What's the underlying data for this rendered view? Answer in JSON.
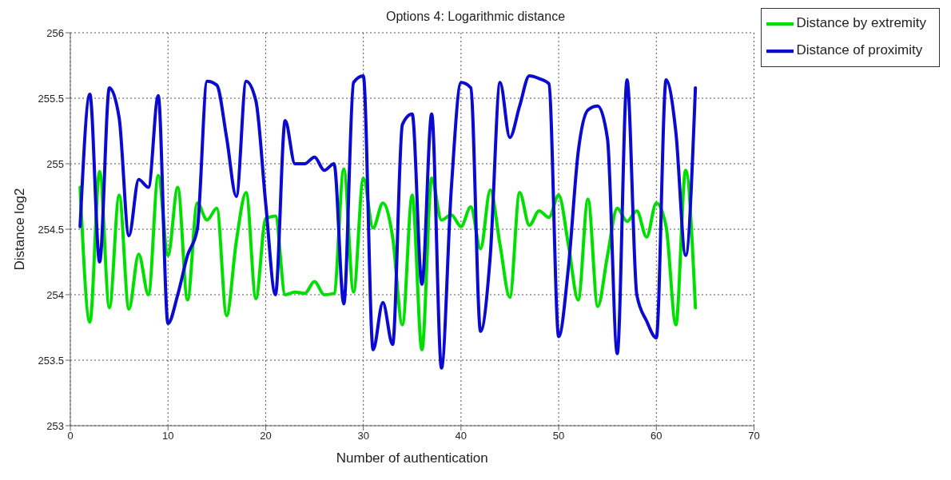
{
  "chart_data": {
    "type": "line",
    "title": "Options 4: Logarithmic distance",
    "xlabel": "Number of authentication",
    "ylabel": "Distance log2",
    "x": [
      1,
      2,
      3,
      4,
      5,
      6,
      7,
      8,
      9,
      10,
      11,
      12,
      13,
      14,
      15,
      16,
      17,
      18,
      19,
      20,
      21,
      22,
      23,
      24,
      25,
      26,
      27,
      28,
      29,
      30,
      31,
      32,
      33,
      34,
      35,
      36,
      37,
      38,
      39,
      40,
      41,
      42,
      43,
      44,
      45,
      46,
      47,
      48,
      49,
      50,
      51,
      52,
      53,
      54,
      55,
      56,
      57,
      58,
      59,
      60,
      61,
      62,
      63,
      64
    ],
    "series": [
      {
        "name": "Distance by extremity",
        "color": "#00e000",
        "values": [
          254.82,
          253.79,
          254.94,
          253.9,
          254.76,
          253.89,
          254.31,
          254.0,
          254.91,
          254.3,
          254.82,
          253.96,
          254.7,
          254.57,
          254.66,
          253.84,
          254.41,
          254.78,
          253.97,
          254.58,
          254.6,
          254.0,
          254.02,
          254.01,
          254.1,
          254.0,
          254.01,
          254.96,
          254.02,
          254.89,
          254.51,
          254.7,
          254.44,
          253.77,
          254.76,
          253.58,
          254.89,
          254.57,
          254.61,
          254.52,
          254.67,
          254.35,
          254.8,
          254.38,
          253.98,
          254.78,
          254.53,
          254.64,
          254.59,
          254.76,
          254.38,
          253.96,
          254.73,
          253.91,
          254.3,
          254.66,
          254.56,
          254.64,
          254.44,
          254.7,
          254.52,
          253.77,
          254.95,
          253.9
        ]
      },
      {
        "name": "Distance of proximity",
        "color": "#0a0ad0",
        "values": [
          254.52,
          255.53,
          254.25,
          255.58,
          255.35,
          254.45,
          254.88,
          254.82,
          255.52,
          253.78,
          254.0,
          254.3,
          254.5,
          255.63,
          255.6,
          255.2,
          254.75,
          255.63,
          255.48,
          254.7,
          254.0,
          255.33,
          255.0,
          255.0,
          255.05,
          254.95,
          255.0,
          253.93,
          255.62,
          255.67,
          253.58,
          253.94,
          253.62,
          255.3,
          255.38,
          254.08,
          255.38,
          253.44,
          254.8,
          255.62,
          255.58,
          253.72,
          254.3,
          255.62,
          255.2,
          255.44,
          255.67,
          255.65,
          255.61,
          253.68,
          254.21,
          255.09,
          255.41,
          255.44,
          255.19,
          253.55,
          255.64,
          254.0,
          253.8,
          253.67,
          255.64,
          255.24,
          254.3,
          255.58
        ]
      }
    ],
    "xlim": [
      0,
      70
    ],
    "xticks": [
      0,
      10,
      20,
      30,
      40,
      50,
      60,
      70
    ],
    "ylim": [
      253,
      256
    ],
    "yticks": [
      253,
      253.5,
      254,
      254.5,
      255,
      255.5,
      256
    ],
    "grid": true,
    "legend": "top right",
    "marker": "none",
    "line_style": "solid"
  }
}
